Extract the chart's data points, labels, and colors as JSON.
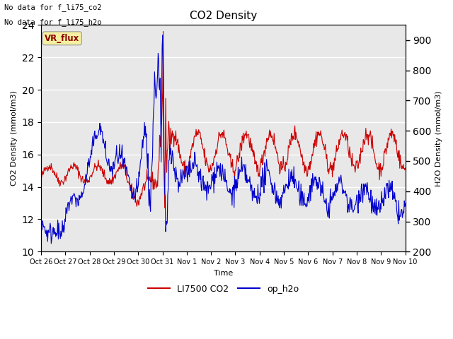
{
  "title": "CO2 Density",
  "xlabel": "Time",
  "ylabel_left": "CO2 Density (mmol/m3)",
  "ylabel_right": "H2O Density (mmol/m3)",
  "ylim_left": [
    10,
    24
  ],
  "ylim_right": [
    200,
    950
  ],
  "bg_color": "#e8e8e8",
  "annotation_line1": "No data for f_li75_co2",
  "annotation_line2": "No data for f_li75_h2o",
  "vr_flux_label": "VR_flux",
  "legend_entries": [
    "LI7500 CO2",
    "op_h2o"
  ],
  "legend_colors": [
    "#cc0000",
    "#0000cc"
  ],
  "xtick_labels": [
    "Oct 26",
    "Oct 27",
    "Oct 28",
    "Oct 29",
    "Oct 30",
    "Oct 31",
    "Nov 1",
    "Nov 2",
    "Nov 3",
    "Nov 4",
    "Nov 5",
    "Nov 6",
    "Nov 7",
    "Nov 8",
    "Nov 9",
    "Nov 10"
  ],
  "grid_color": "white",
  "line_color_red": "#cc0000",
  "line_color_blue": "#0000cc",
  "figsize": [
    6.4,
    4.8
  ],
  "dpi": 100
}
